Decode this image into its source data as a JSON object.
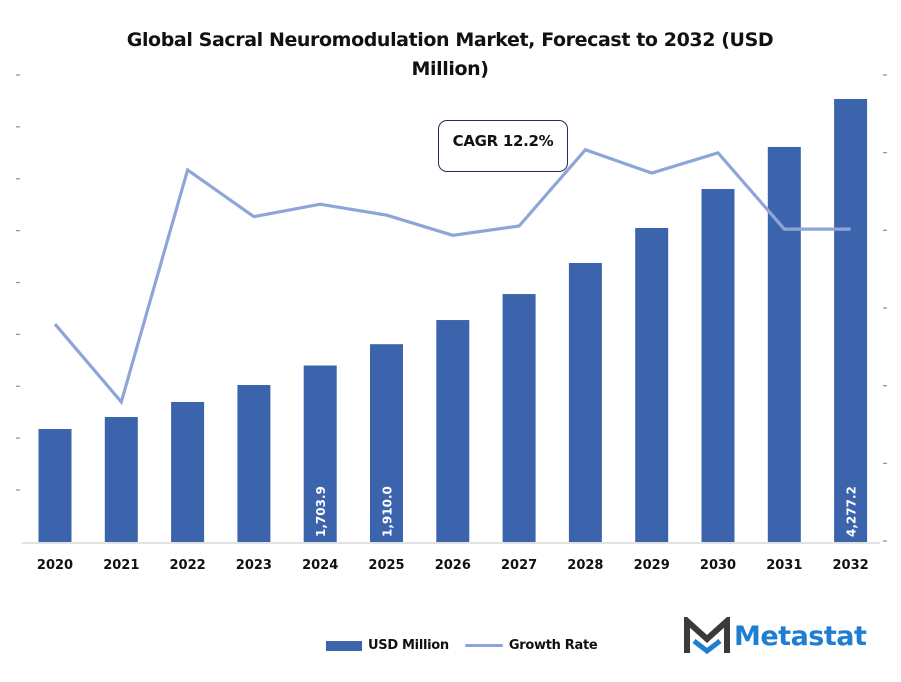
{
  "chart_data": {
    "type": "bar",
    "title": "Global Sacral Neuromodulation Market, Forecast to 2032 (USD Million)",
    "title_lines": [
      "Global Sacral Neuromodulation Market, Forecast to 2032 (USD",
      "Million)"
    ],
    "xlabel": "",
    "ylabel": "",
    "categories": [
      "2020",
      "2021",
      "2022",
      "2023",
      "2024",
      "2025",
      "2026",
      "2027",
      "2028",
      "2029",
      "2030",
      "2031",
      "2032"
    ],
    "series": [
      {
        "name": "USD Million",
        "type": "bar",
        "axis": "left",
        "color": "#3c64ac",
        "values": [
          1091,
          1207,
          1352,
          1516,
          1703.9,
          1910.0,
          2143,
          2394,
          2694,
          3032,
          3408,
          3814,
          4277.2
        ],
        "data_labels": [
          "",
          "",
          "",
          "",
          "1,703.9",
          "1,910.0",
          "",
          "",
          "",
          "",
          "",
          "",
          "4,277.2"
        ]
      },
      {
        "name": "Growth Rate",
        "type": "line",
        "axis": "right",
        "color": "#8fa5d9",
        "unit": "%",
        "values": [
          11.4,
          10.9,
          12.39,
          12.09,
          12.17,
          12.1,
          11.97,
          12.03,
          12.52,
          12.37,
          12.5,
          12.01,
          12.01
        ]
      }
    ],
    "ylim_left": [
      0,
      4500
    ],
    "left_ticks_count": 9,
    "ylim_right": [
      10.0,
      13.0
    ],
    "right_ticks_count": 7,
    "tick_labels_visible": false,
    "grid": false,
    "legend": {
      "position": "bottom",
      "entries": [
        "USD Million",
        "Growth Rate"
      ]
    },
    "annotation": {
      "text": "CAGR 12.2%",
      "position": "top-center"
    }
  },
  "branding": {
    "logo_text": "Metastat",
    "logo_color": "#1e7fd1"
  }
}
